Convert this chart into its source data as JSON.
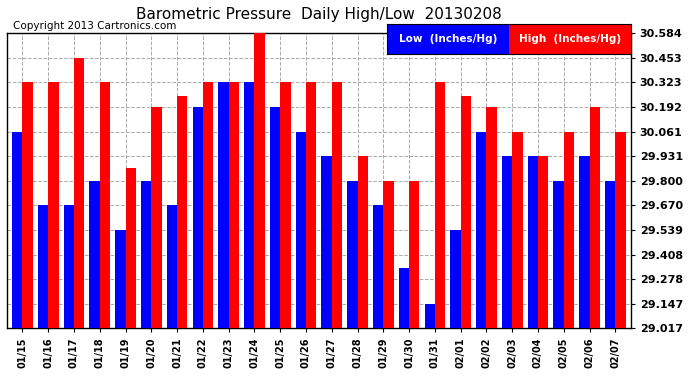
{
  "title": "Barometric Pressure  Daily High/Low  20130208",
  "copyright": "Copyright 2013 Cartronics.com",
  "legend_low": "Low  (Inches/Hg)",
  "legend_high": "High  (Inches/Hg)",
  "dates": [
    "01/15",
    "01/16",
    "01/17",
    "01/18",
    "01/19",
    "01/20",
    "01/21",
    "01/22",
    "01/23",
    "01/24",
    "01/25",
    "01/26",
    "01/27",
    "01/28",
    "01/29",
    "01/30",
    "01/31",
    "02/01",
    "02/02",
    "02/03",
    "02/04",
    "02/05",
    "02/06",
    "02/07"
  ],
  "low_values": [
    30.061,
    29.67,
    29.67,
    29.8,
    29.539,
    29.8,
    29.67,
    30.192,
    30.323,
    30.323,
    30.192,
    30.061,
    29.931,
    29.8,
    29.67,
    29.34,
    29.147,
    29.539,
    30.061,
    29.931,
    29.931,
    29.8,
    29.931,
    29.8
  ],
  "high_values": [
    30.323,
    30.323,
    30.453,
    30.323,
    29.87,
    30.192,
    30.253,
    30.323,
    30.323,
    30.584,
    30.323,
    30.323,
    30.323,
    29.931,
    29.8,
    29.8,
    30.323,
    30.253,
    30.192,
    30.061,
    29.931,
    30.061,
    30.192,
    30.061
  ],
  "low_color": "#0000ff",
  "high_color": "#ff0000",
  "bg_color": "#ffffff",
  "ymin": 29.017,
  "ymax": 30.584,
  "yticks": [
    29.017,
    29.147,
    29.278,
    29.408,
    29.539,
    29.67,
    29.8,
    29.931,
    30.061,
    30.192,
    30.323,
    30.453,
    30.584
  ],
  "title_fontsize": 11,
  "copyright_fontsize": 7.5,
  "legend_fontsize": 8
}
